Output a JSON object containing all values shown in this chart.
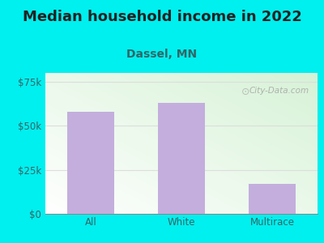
{
  "title": "Median household income in 2022",
  "subtitle": "Dassel, MN",
  "categories": [
    "All",
    "White",
    "Multirace"
  ],
  "values": [
    58000,
    63000,
    17000
  ],
  "bar_color": "#C4AEDD",
  "background_color": "#00EFEF",
  "ylim": [
    0,
    80000
  ],
  "yticks": [
    0,
    25000,
    50000,
    75000
  ],
  "ytick_labels": [
    "$0",
    "$25k",
    "$50k",
    "$75k"
  ],
  "title_color": "#222222",
  "subtitle_color": "#336666",
  "tick_color": "#336666",
  "grid_color": "#DDDDDD",
  "watermark_text": "City-Data.com",
  "watermark_color": "#AAAAAA",
  "title_fontsize": 13,
  "subtitle_fontsize": 10
}
